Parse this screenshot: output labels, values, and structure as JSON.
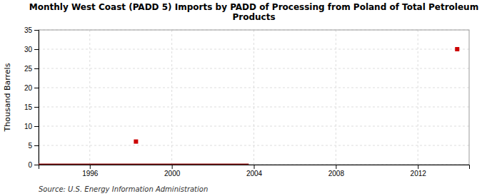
{
  "chart_data": {
    "type": "line",
    "title": "Monthly West Coast (PADD 5) Imports by PADD of Processing from Poland of Total Petroleum\nProducts",
    "ylabel": "Thousand Barrels",
    "annotations": [
      "Source: U.S. Energy Information Administration"
    ],
    "xlim": [
      1993.5,
      2014.5
    ],
    "ylim": [
      0,
      35
    ],
    "xticks": [
      1996,
      2000,
      2004,
      2008,
      2012
    ],
    "yticks": [
      0,
      5,
      10,
      15,
      20,
      25,
      30,
      35
    ],
    "grid": true,
    "series": [
      {
        "type": "line",
        "color": "#8b1a1a",
        "x": [
          1993.5,
          2003.75
        ],
        "values": [
          0,
          0
        ]
      },
      {
        "type": "scatter",
        "marker": "square",
        "color": "#cc0000",
        "x": [
          1998.25,
          2013.917
        ],
        "values": [
          6,
          30
        ]
      }
    ]
  }
}
